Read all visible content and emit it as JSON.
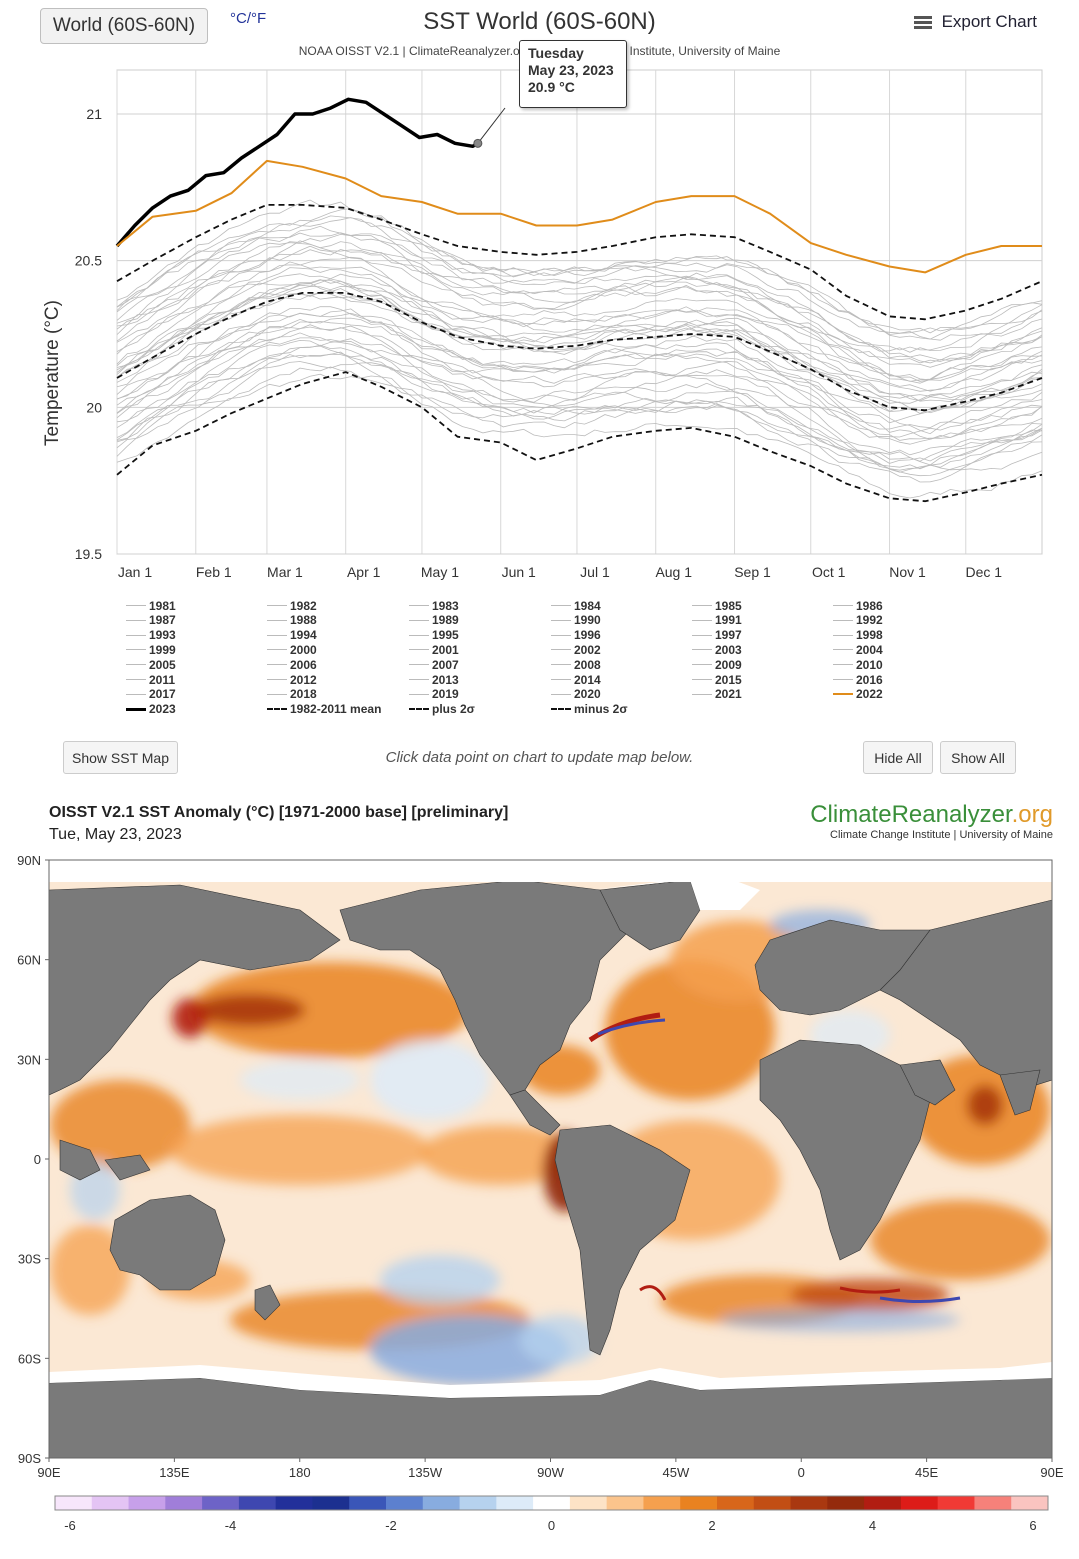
{
  "toolbar": {
    "region_label": "World (60S-60N)",
    "units_label": "°C/°F",
    "export_label": "Export Chart"
  },
  "chart_data": [
    {
      "type": "line",
      "title": "SST World (60S-60N)",
      "subtitle": "NOAA OISST V2.1 | ClimateReanalyzer.org | Climate Change Institute, University of Maine",
      "ylabel": "Temperature (°C)",
      "xlabel": "",
      "ylim": [
        19.5,
        21.15
      ],
      "yticks": [
        "19.5",
        "20",
        "20.5",
        "21"
      ],
      "xticks": [
        "Jan 1",
        "Feb 1",
        "Mar 1",
        "Apr 1",
        "May 1",
        "Jun 1",
        "Jul 1",
        "Aug 1",
        "Sep 1",
        "Oct 1",
        "Nov 1",
        "Dec 1"
      ],
      "x_unit": "day of year",
      "grid": true,
      "legend_position": "bottom",
      "series": [
        {
          "name": "2023",
          "color": "#000000",
          "style": "thick",
          "x": [
            1,
            8,
            15,
            22,
            29,
            36,
            43,
            50,
            57,
            64,
            71,
            78,
            85,
            92,
            99,
            106,
            113,
            120,
            127,
            134,
            141,
            143
          ],
          "y": [
            20.55,
            20.62,
            20.68,
            20.72,
            20.74,
            20.79,
            20.8,
            20.85,
            20.89,
            20.93,
            21.0,
            21.0,
            21.02,
            21.05,
            21.04,
            21.0,
            20.96,
            20.92,
            20.93,
            20.9,
            20.89,
            20.9
          ]
        },
        {
          "name": "2022",
          "color": "#e08c1a",
          "style": "solid",
          "x": [
            1,
            15,
            32,
            46,
            60,
            74,
            91,
            105,
            121,
            135,
            152,
            166,
            182,
            196,
            213,
            227,
            244,
            258,
            274,
            288,
            305,
            319,
            335,
            349,
            365
          ],
          "y": [
            20.55,
            20.65,
            20.67,
            20.73,
            20.84,
            20.82,
            20.78,
            20.72,
            20.7,
            20.66,
            20.66,
            20.62,
            20.62,
            20.64,
            20.7,
            20.72,
            20.72,
            20.66,
            20.56,
            20.52,
            20.48,
            20.46,
            20.52,
            20.55,
            20.55
          ]
        },
        {
          "name": "1982-2011 mean",
          "color": "#111111",
          "style": "dashed",
          "x": [
            1,
            15,
            32,
            46,
            60,
            74,
            91,
            105,
            121,
            135,
            152,
            166,
            182,
            196,
            213,
            227,
            244,
            258,
            274,
            288,
            305,
            319,
            335,
            349,
            365
          ],
          "y": [
            20.1,
            20.17,
            20.25,
            20.31,
            20.36,
            20.39,
            20.39,
            20.36,
            20.29,
            20.24,
            20.21,
            20.2,
            20.21,
            20.23,
            20.24,
            20.25,
            20.24,
            20.19,
            20.13,
            20.06,
            20.0,
            19.99,
            20.02,
            20.05,
            20.1
          ]
        },
        {
          "name": "plus 2σ",
          "color": "#111111",
          "style": "dashed",
          "x": [
            1,
            15,
            32,
            46,
            60,
            74,
            91,
            105,
            121,
            135,
            152,
            166,
            182,
            196,
            213,
            227,
            244,
            258,
            274,
            288,
            305,
            319,
            335,
            349,
            365
          ],
          "y": [
            20.43,
            20.5,
            20.58,
            20.64,
            20.69,
            20.69,
            20.68,
            20.64,
            20.59,
            20.55,
            20.53,
            20.52,
            20.53,
            20.55,
            20.58,
            20.59,
            20.58,
            20.53,
            20.47,
            20.38,
            20.31,
            20.3,
            20.33,
            20.37,
            20.43
          ]
        },
        {
          "name": "minus 2σ",
          "color": "#111111",
          "style": "dashed",
          "x": [
            1,
            15,
            32,
            46,
            60,
            74,
            91,
            105,
            121,
            135,
            152,
            166,
            182,
            196,
            213,
            227,
            244,
            258,
            274,
            288,
            305,
            319,
            335,
            349,
            365
          ],
          "y": [
            19.77,
            19.87,
            19.92,
            19.98,
            20.03,
            20.08,
            20.12,
            20.07,
            20.0,
            19.9,
            19.88,
            19.82,
            19.86,
            19.9,
            19.92,
            19.93,
            19.9,
            19.85,
            19.8,
            19.74,
            19.69,
            19.68,
            19.71,
            19.74,
            19.77
          ]
        }
      ],
      "tooltip": {
        "day": "Tuesday",
        "date": "May 23, 2023",
        "value": "20.9 °C"
      },
      "legend_years": [
        "1981",
        "1982",
        "1983",
        "1984",
        "1985",
        "1986",
        "1987",
        "1988",
        "1989",
        "1990",
        "1991",
        "1992",
        "1993",
        "1994",
        "1995",
        "1996",
        "1997",
        "1998",
        "1999",
        "2000",
        "2001",
        "2002",
        "2003",
        "2004",
        "2005",
        "2006",
        "2007",
        "2008",
        "2009",
        "2010",
        "2011",
        "2012",
        "2013",
        "2014",
        "2015",
        "2016",
        "2017",
        "2018",
        "2019",
        "2020",
        "2021",
        "2022",
        "2023",
        "1982-2011 mean",
        "plus 2σ",
        "minus 2σ"
      ]
    },
    {
      "type": "heatmap",
      "title": "OISST V2.1 SST Anomaly (°C) [1971-2000 base] [preliminary]",
      "date_label": "Tue, May 23, 2023",
      "xticks": [
        "90E",
        "135E",
        "180",
        "135W",
        "90W",
        "45W",
        "0",
        "45E",
        "90E"
      ],
      "yticks": [
        "90N",
        "60N",
        "30N",
        "0",
        "30S",
        "60S",
        "90S"
      ],
      "colorbar_ticks": [
        "-6",
        "-4",
        "-2",
        "0",
        "2",
        "4",
        "6"
      ],
      "colorbar_range": [
        -6,
        6
      ],
      "colorbar_colors": [
        "#f7e6fb",
        "#e4c4f4",
        "#c7a0ea",
        "#a07ed9",
        "#6d63c7",
        "#3e47b0",
        "#22309a",
        "#1c3090",
        "#3a56b8",
        "#5c80cf",
        "#88acdf",
        "#b6d2ee",
        "#ddebf8",
        "#ffffff",
        "#fde3c6",
        "#fbc48c",
        "#f5a04e",
        "#e98220",
        "#d8661a",
        "#c24e14",
        "#a93810",
        "#942a0c",
        "#b11d12",
        "#dd1c18",
        "#f13a35",
        "#f6817a",
        "#fac4c0"
      ]
    }
  ],
  "buttons": {
    "show_map": "Show SST Map",
    "hide_all": "Hide All",
    "show_all": "Show All",
    "hint": "Click data point on chart to update map below."
  },
  "map": {
    "brand_main": "ClimateReanalyzer",
    "brand_tld": ".org",
    "brand_sub": "Climate Change Institute | University of Maine"
  },
  "colors": {
    "current_year": "#000000",
    "prior_year": "#e08c1a",
    "other_years": "#bbbbbb",
    "land": "#7a7a7a",
    "ice": "#ffffff"
  }
}
